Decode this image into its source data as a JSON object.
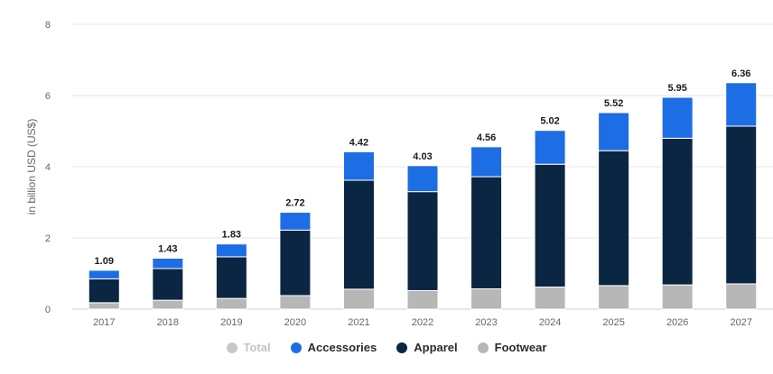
{
  "chart_data": {
    "type": "bar",
    "stacked": true,
    "title": "",
    "xlabel": "",
    "ylabel": "in billion USD (US$)",
    "ylim": [
      0,
      8
    ],
    "yticks": [
      "0",
      "2",
      "4",
      "6",
      "8"
    ],
    "grid": true,
    "legend_position": "bottom",
    "categories": [
      "2017",
      "2018",
      "2019",
      "2020",
      "2021",
      "2022",
      "2023",
      "2024",
      "2025",
      "2026",
      "2027"
    ],
    "totals": [
      1.09,
      1.43,
      1.83,
      2.72,
      4.42,
      4.03,
      4.56,
      5.02,
      5.52,
      5.95,
      6.36
    ],
    "total_labels": [
      "1.09",
      "1.43",
      "1.83",
      "2.72",
      "4.42",
      "4.03",
      "4.56",
      "5.02",
      "5.52",
      "5.95",
      "6.36"
    ],
    "series": [
      {
        "name": "Footwear",
        "color": "#b7b7b7",
        "values": [
          0.18,
          0.25,
          0.3,
          0.38,
          0.56,
          0.52,
          0.57,
          0.62,
          0.66,
          0.68,
          0.71
        ]
      },
      {
        "name": "Apparel",
        "color": "#0b2642",
        "values": [
          0.67,
          0.89,
          1.17,
          1.84,
          3.06,
          2.78,
          3.15,
          3.45,
          3.79,
          4.12,
          4.43
        ]
      },
      {
        "name": "Accessories",
        "color": "#1d6de5",
        "values": [
          0.24,
          0.29,
          0.36,
          0.5,
          0.8,
          0.73,
          0.84,
          0.95,
          1.07,
          1.15,
          1.22
        ]
      }
    ],
    "legend": [
      {
        "name": "Total",
        "color": "#c8c8c8",
        "muted": true
      },
      {
        "name": "Accessories",
        "color": "#1d6de5",
        "muted": false
      },
      {
        "name": "Apparel",
        "color": "#0b2642",
        "muted": false
      },
      {
        "name": "Footwear",
        "color": "#b7b7b7",
        "muted": false
      }
    ]
  }
}
